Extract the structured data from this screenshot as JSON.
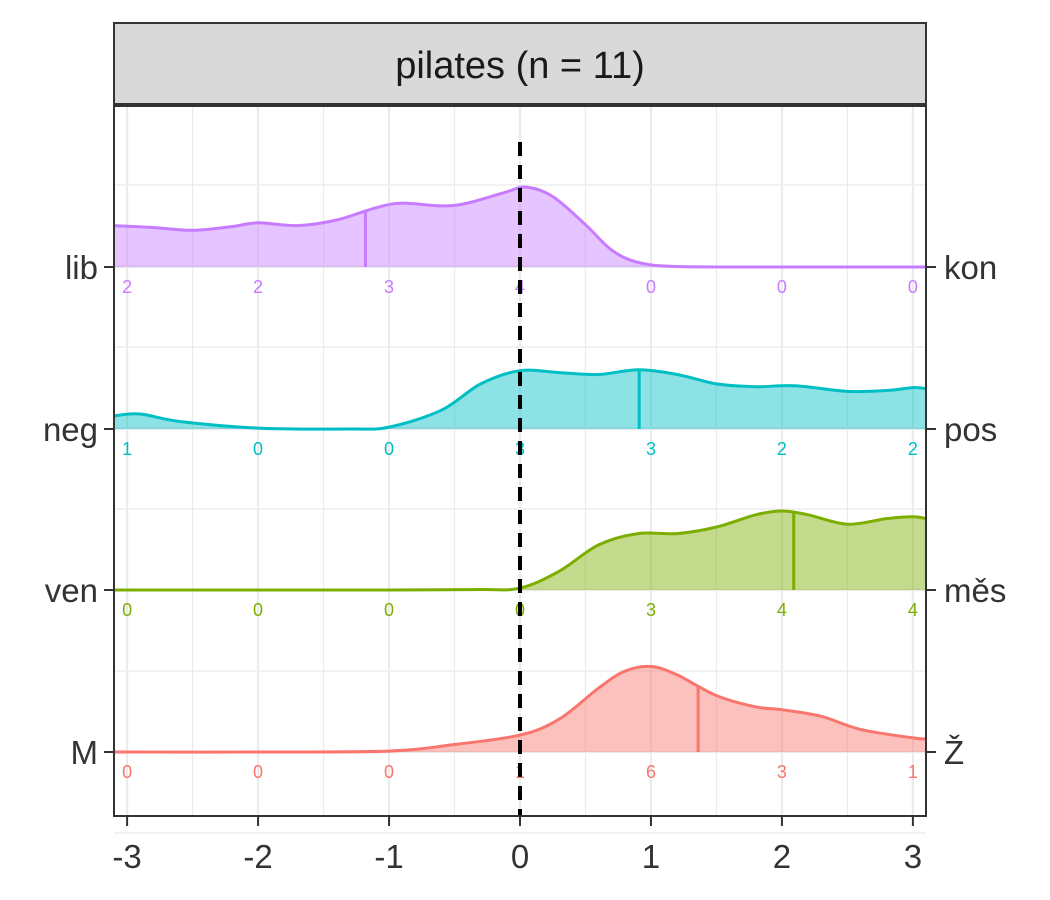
{
  "chart_data": {
    "type": "ridgeline",
    "facet_title": "pilates (n = 11)",
    "xlim": [
      -3.1,
      3.1
    ],
    "x_ticks": [
      -3,
      -2,
      -1,
      0,
      1,
      2,
      3
    ],
    "x_tick_labels": [
      "-3",
      "-2",
      "-1",
      "0",
      "1",
      "2",
      "3"
    ],
    "reference_line_x": 0,
    "grid": true,
    "count_positions": [
      -3,
      -2,
      -1,
      0,
      1,
      2,
      3
    ],
    "series": [
      {
        "left_label": "M",
        "right_label": "Ž",
        "color": "#F8766D",
        "mean": 1.36,
        "counts": [
          "0",
          "0",
          "0",
          "1",
          "6",
          "3",
          "1"
        ],
        "density": [
          [
            -3.1,
            0
          ],
          [
            -2,
            0
          ],
          [
            -1,
            0.01
          ],
          [
            -0.5,
            0.08
          ],
          [
            0,
            0.18
          ],
          [
            0.3,
            0.35
          ],
          [
            0.6,
            0.68
          ],
          [
            0.8,
            0.86
          ],
          [
            1.0,
            0.91
          ],
          [
            1.2,
            0.82
          ],
          [
            1.5,
            0.6
          ],
          [
            1.8,
            0.48
          ],
          [
            2.0,
            0.45
          ],
          [
            2.3,
            0.38
          ],
          [
            2.6,
            0.24
          ],
          [
            3.0,
            0.15
          ],
          [
            3.1,
            0.14
          ]
        ]
      },
      {
        "left_label": "ven",
        "right_label": "měs",
        "color": "#7CAE00",
        "mean": 2.09,
        "counts": [
          "0",
          "0",
          "0",
          "0",
          "3",
          "4",
          "4"
        ],
        "density": [
          [
            -3.1,
            0
          ],
          [
            -1,
            0
          ],
          [
            -0.3,
            0.005
          ],
          [
            0,
            0.02
          ],
          [
            0.3,
            0.2
          ],
          [
            0.6,
            0.48
          ],
          [
            0.9,
            0.6
          ],
          [
            1.2,
            0.6
          ],
          [
            1.5,
            0.67
          ],
          [
            1.8,
            0.8
          ],
          [
            2.0,
            0.84
          ],
          [
            2.2,
            0.8
          ],
          [
            2.5,
            0.7
          ],
          [
            2.8,
            0.76
          ],
          [
            3.0,
            0.78
          ],
          [
            3.1,
            0.76
          ]
        ]
      },
      {
        "left_label": "neg",
        "right_label": "pos",
        "color": "#00BFC4",
        "mean": 0.91,
        "counts": [
          "1",
          "0",
          "0",
          "3",
          "3",
          "2",
          "2"
        ],
        "density": [
          [
            -3.1,
            0.14
          ],
          [
            -2.9,
            0.16
          ],
          [
            -2.6,
            0.08
          ],
          [
            -2,
            0.01
          ],
          [
            -1.3,
            0
          ],
          [
            -1,
            0.02
          ],
          [
            -0.6,
            0.2
          ],
          [
            -0.3,
            0.48
          ],
          [
            0,
            0.62
          ],
          [
            0.3,
            0.6
          ],
          [
            0.6,
            0.58
          ],
          [
            0.9,
            0.63
          ],
          [
            1.2,
            0.58
          ],
          [
            1.5,
            0.48
          ],
          [
            1.8,
            0.45
          ],
          [
            2.1,
            0.46
          ],
          [
            2.5,
            0.4
          ],
          [
            2.8,
            0.41
          ],
          [
            3.0,
            0.44
          ],
          [
            3.1,
            0.43
          ]
        ]
      },
      {
        "left_label": "lib",
        "right_label": "kon",
        "color": "#C77CFF",
        "mean": -1.18,
        "counts": [
          "2",
          "2",
          "3",
          "4",
          "0",
          "0",
          "0"
        ],
        "density": [
          [
            -3.1,
            0.44
          ],
          [
            -2.8,
            0.42
          ],
          [
            -2.5,
            0.39
          ],
          [
            -2.2,
            0.43
          ],
          [
            -2,
            0.47
          ],
          [
            -1.7,
            0.44
          ],
          [
            -1.4,
            0.5
          ],
          [
            -1.1,
            0.63
          ],
          [
            -0.9,
            0.68
          ],
          [
            -0.6,
            0.65
          ],
          [
            -0.4,
            0.68
          ],
          [
            -0.1,
            0.8
          ],
          [
            0.05,
            0.85
          ],
          [
            0.25,
            0.75
          ],
          [
            0.5,
            0.45
          ],
          [
            0.7,
            0.18
          ],
          [
            0.9,
            0.05
          ],
          [
            1.2,
            0.005
          ],
          [
            2,
            0
          ],
          [
            3.1,
            0
          ]
        ]
      }
    ]
  }
}
